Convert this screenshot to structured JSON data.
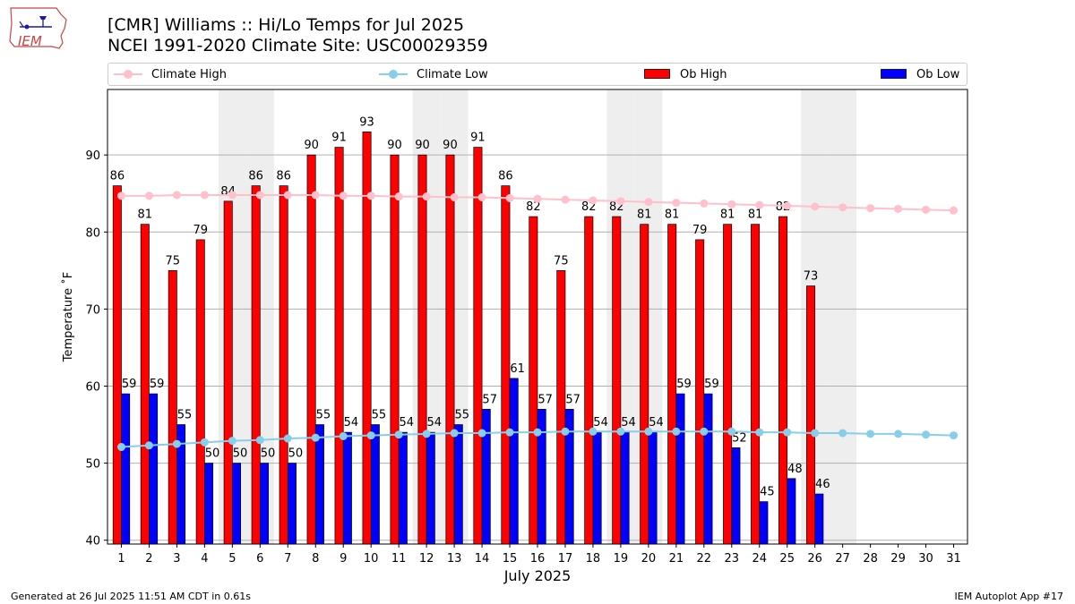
{
  "title_line1": "[CMR] Williams :: Hi/Lo Temps for Jul 2025",
  "title_line2": "NCEI 1991-2020 Climate Site: USC00029359",
  "logo_text": "IEM",
  "footer_left": "Generated at 26 Jul 2025 11:51 AM CDT in 0.61s",
  "footer_right": "IEM Autoplot App #17",
  "colors": {
    "ob_high": "#ff0000",
    "ob_low": "#0000ff",
    "climate_high": "#ffc0cb",
    "climate_low": "#87ceeb",
    "weekend_shade": "#eeeeee",
    "grid": "#b0b0b0"
  },
  "chart_data": {
    "type": "bar",
    "xlabel": "July 2025",
    "ylabel": "Temperature ˚F",
    "ylim": [
      39.5,
      98.5
    ],
    "yticks": [
      40,
      50,
      60,
      70,
      80,
      90
    ],
    "grid": "horizontal",
    "legend_position": "top",
    "categories": [
      "1",
      "2",
      "3",
      "4",
      "5",
      "6",
      "7",
      "8",
      "9",
      "10",
      "11",
      "12",
      "13",
      "14",
      "15",
      "16",
      "17",
      "18",
      "19",
      "20",
      "21",
      "22",
      "23",
      "24",
      "25",
      "26",
      "27",
      "28",
      "29",
      "30",
      "31"
    ],
    "shaded_days": [
      5,
      6,
      12,
      13,
      19,
      20,
      26,
      27
    ],
    "series": [
      {
        "name": "Ob High",
        "kind": "bar",
        "values": [
          86,
          81,
          75,
          79,
          84,
          86,
          86,
          90,
          91,
          93,
          90,
          90,
          90,
          91,
          86,
          82,
          75,
          82,
          82,
          81,
          81,
          79,
          81,
          81,
          82,
          73,
          null,
          null,
          null,
          null,
          null
        ]
      },
      {
        "name": "Ob Low",
        "kind": "bar",
        "values": [
          59,
          59,
          55,
          50,
          50,
          50,
          50,
          55,
          54,
          55,
          54,
          54,
          55,
          57,
          61,
          57,
          57,
          54,
          54,
          54,
          59,
          59,
          52,
          45,
          48,
          46,
          null,
          null,
          null,
          null,
          null
        ]
      },
      {
        "name": "Climate High",
        "kind": "line",
        "values": [
          84.7,
          84.7,
          84.8,
          84.8,
          84.8,
          84.8,
          84.8,
          84.8,
          84.7,
          84.7,
          84.6,
          84.6,
          84.5,
          84.5,
          84.4,
          84.3,
          84.2,
          84.1,
          84.0,
          83.9,
          83.8,
          83.7,
          83.6,
          83.5,
          83.4,
          83.3,
          83.2,
          83.1,
          83.0,
          82.9,
          82.8
        ]
      },
      {
        "name": "Climate Low",
        "kind": "line",
        "values": [
          52.1,
          52.3,
          52.5,
          52.7,
          52.9,
          53.0,
          53.2,
          53.3,
          53.5,
          53.6,
          53.7,
          53.8,
          53.9,
          53.9,
          54.0,
          54.0,
          54.1,
          54.1,
          54.1,
          54.1,
          54.1,
          54.1,
          54.1,
          54.0,
          54.0,
          53.9,
          53.9,
          53.8,
          53.8,
          53.7,
          53.6
        ]
      }
    ]
  }
}
